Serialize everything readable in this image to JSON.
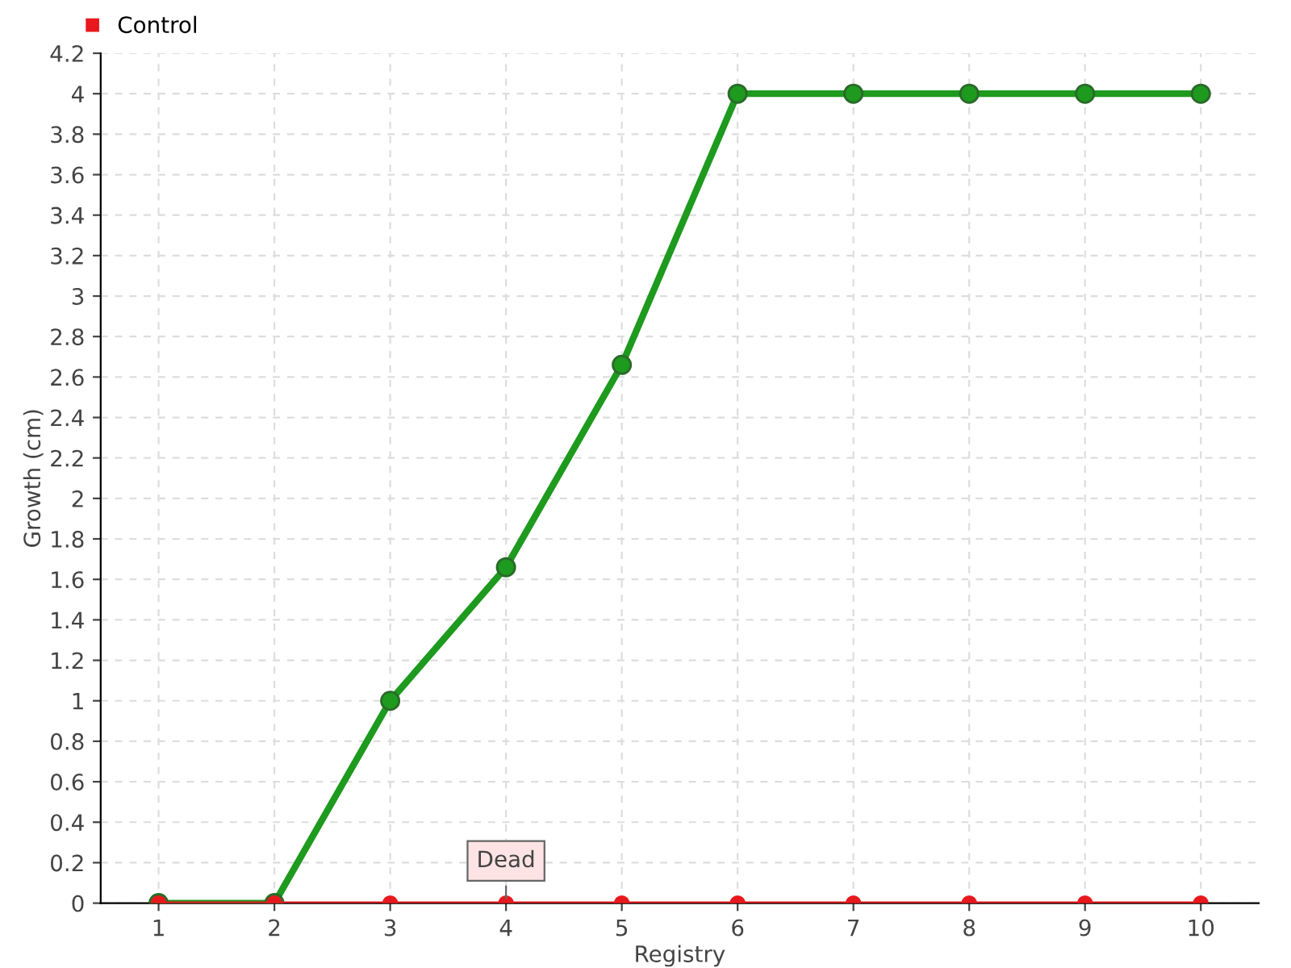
{
  "chart_data": {
    "type": "line",
    "xlabel": "Registry",
    "ylabel": "Growth (cm)",
    "x": [
      1,
      2,
      3,
      4,
      5,
      6,
      7,
      8,
      9,
      10
    ],
    "series": [
      {
        "color": "#1e9a1e",
        "values": [
          0,
          0,
          1,
          1.66,
          2.66,
          4,
          4,
          4,
          4,
          4
        ]
      },
      {
        "name": "Control",
        "color": "#e8191e",
        "values": [
          0,
          0,
          0,
          0,
          0,
          0,
          0,
          0,
          0,
          0
        ]
      }
    ],
    "xlim": [
      0.5,
      10.5
    ],
    "xticks": [
      1,
      2,
      3,
      4,
      5,
      6,
      7,
      8,
      9,
      10
    ],
    "ylim": [
      0,
      4.2
    ],
    "yticks": [
      0,
      0.2,
      0.4,
      0.6,
      0.8,
      1,
      1.2,
      1.4,
      1.6,
      1.8,
      2,
      2.2,
      2.4,
      2.6,
      2.8,
      3,
      3.2,
      3.4,
      3.6,
      3.8,
      4,
      4.2
    ],
    "grid": true,
    "legend": "top left",
    "marker": "circle",
    "line_style": "solid",
    "annotations": [
      {
        "text": "Dead",
        "x": 4,
        "y": 0
      }
    ]
  }
}
